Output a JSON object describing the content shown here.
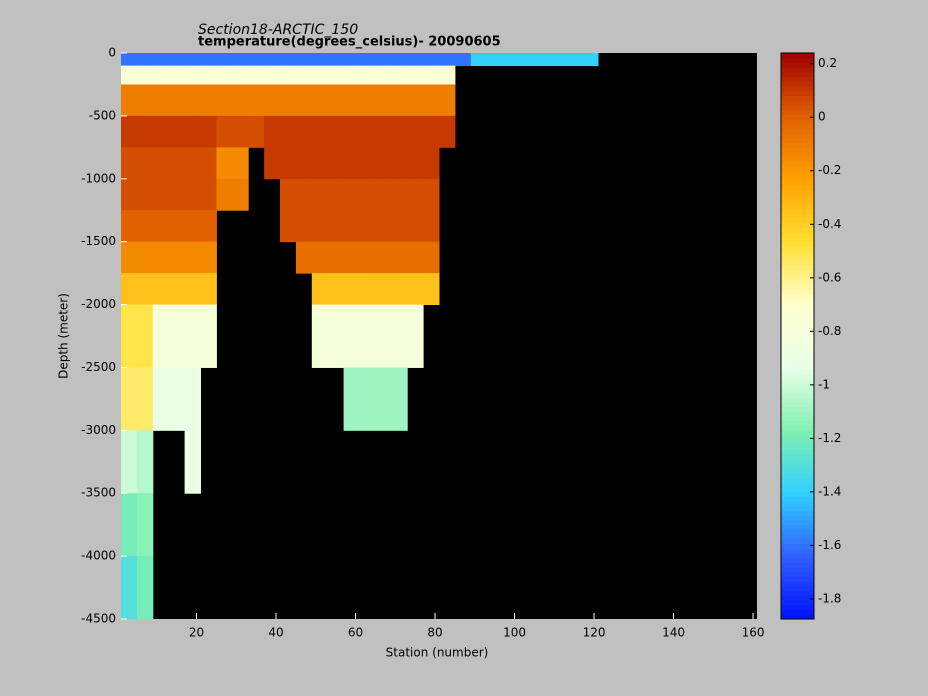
{
  "chart_data": {
    "type": "heatmap",
    "title": "Section18-ARCTIC_150",
    "subtitle": "temperature(degrees_celsius)- 20090605",
    "x_label": "Station (number)",
    "y_label": "Depth (meter)",
    "xlim": [
      1,
      161
    ],
    "ylim": [
      -4500,
      0
    ],
    "xticks": [
      20,
      40,
      60,
      80,
      100,
      120,
      140,
      160
    ],
    "yticks": [
      0,
      -500,
      -1000,
      -1500,
      -2000,
      -2500,
      -3000,
      -3500,
      -4000,
      -4500
    ],
    "clim": [
      -1.875,
      0.24
    ],
    "cticks": [
      0.2,
      0,
      -0.2,
      -0.4,
      -0.6,
      -0.8,
      -1,
      -1.2,
      -1.4,
      -1.6,
      -1.8
    ],
    "colormap": [
      "#0010ff",
      "#3060ff",
      "#30d0ff",
      "#80f0b0",
      "#e8ffe8",
      "#ffffd0",
      "#ffe030",
      "#ffa000",
      "#e06000",
      "#a00000"
    ],
    "background": "#000000",
    "x_edges": [
      1,
      5,
      9,
      13,
      17,
      21,
      25,
      29,
      33,
      37,
      41,
      45,
      49,
      53,
      57,
      61,
      65,
      69,
      73,
      77,
      81,
      85,
      89,
      93,
      97,
      101,
      105,
      109,
      113,
      117,
      121,
      125,
      129,
      133,
      137,
      141,
      145,
      149,
      153,
      157,
      161
    ],
    "y_edges": [
      0,
      -100,
      -250,
      -500,
      -750,
      -1000,
      -1250,
      -1500,
      -1750,
      -2000,
      -2500,
      -3000,
      -3500,
      -4000,
      -4500
    ],
    "z": [
      [
        -1.6,
        -1.6,
        -1.6,
        -1.6,
        -1.6,
        -1.6,
        -1.6,
        -1.6,
        -1.6,
        -1.6,
        -1.6,
        -1.6,
        -1.6,
        -1.6,
        -1.6,
        -1.6,
        -1.6,
        -1.6,
        -1.6,
        -1.6,
        -1.6,
        -1.6,
        -1.4,
        -1.4,
        -1.4,
        -1.4,
        -1.4,
        -1.4,
        -1.4,
        -1.4,
        null,
        null,
        null,
        null,
        null,
        null,
        null,
        null,
        null,
        null
      ],
      [
        -0.75,
        -0.75,
        -0.75,
        -0.75,
        -0.75,
        -0.75,
        -0.75,
        -0.75,
        -0.75,
        -0.75,
        -0.75,
        -0.75,
        -0.75,
        -0.75,
        -0.75,
        -0.75,
        -0.75,
        -0.75,
        -0.75,
        -0.75,
        -0.75,
        null,
        null,
        null,
        null,
        null,
        null,
        null,
        null,
        null,
        null,
        null,
        null,
        null,
        null,
        null,
        null,
        null,
        null,
        null
      ],
      [
        -0.1,
        -0.1,
        -0.1,
        -0.1,
        -0.1,
        -0.1,
        -0.1,
        -0.1,
        -0.1,
        -0.1,
        -0.1,
        -0.1,
        -0.1,
        -0.1,
        -0.1,
        -0.1,
        -0.1,
        -0.1,
        -0.1,
        -0.1,
        -0.1,
        null,
        null,
        null,
        null,
        null,
        null,
        null,
        null,
        null,
        null,
        null,
        null,
        null,
        null,
        null,
        null,
        null,
        null,
        null
      ],
      [
        0.1,
        0.1,
        0.1,
        0.1,
        0.1,
        0.1,
        0.05,
        0.05,
        0.05,
        0.1,
        0.1,
        0.1,
        0.1,
        0.1,
        0.1,
        0.1,
        0.1,
        0.1,
        0.1,
        0.1,
        0.1,
        null,
        null,
        null,
        null,
        null,
        null,
        null,
        null,
        null,
        null,
        null,
        null,
        null,
        null,
        null,
        null,
        null,
        null,
        null
      ],
      [
        0.05,
        0.05,
        0.05,
        0.05,
        0.05,
        0.05,
        -0.15,
        -0.15,
        null,
        0.1,
        0.1,
        0.1,
        0.1,
        0.1,
        0.1,
        0.1,
        0.1,
        0.1,
        0.1,
        0.1,
        null,
        null,
        null,
        null,
        null,
        null,
        null,
        null,
        null,
        null,
        null,
        null,
        null,
        null,
        null,
        null,
        null,
        null,
        null,
        null
      ],
      [
        0.05,
        0.05,
        0.05,
        0.05,
        0.05,
        0.05,
        -0.1,
        -0.1,
        null,
        null,
        0.05,
        0.05,
        0.05,
        0.05,
        0.05,
        0.05,
        0.05,
        0.05,
        0.05,
        0.05,
        null,
        null,
        null,
        null,
        null,
        null,
        null,
        null,
        null,
        null,
        null,
        null,
        null,
        null,
        null,
        null,
        null,
        null,
        null,
        null
      ],
      [
        0,
        0,
        0,
        0,
        0,
        0,
        null,
        null,
        null,
        null,
        0.05,
        0.05,
        0.05,
        0.05,
        0.05,
        0.05,
        0.05,
        0.05,
        0.05,
        0.05,
        null,
        null,
        null,
        null,
        null,
        null,
        null,
        null,
        null,
        null,
        null,
        null,
        null,
        null,
        null,
        null,
        null,
        null,
        null,
        null
      ],
      [
        -0.15,
        -0.15,
        -0.15,
        -0.15,
        -0.15,
        -0.15,
        null,
        null,
        null,
        null,
        null,
        -0.05,
        -0.05,
        -0.05,
        -0.05,
        -0.05,
        -0.05,
        -0.05,
        -0.05,
        -0.05,
        null,
        null,
        null,
        null,
        null,
        null,
        null,
        null,
        null,
        null,
        null,
        null,
        null,
        null,
        null,
        null,
        null,
        null,
        null,
        null
      ],
      [
        -0.35,
        -0.35,
        -0.35,
        -0.35,
        -0.35,
        -0.35,
        null,
        null,
        null,
        null,
        null,
        null,
        -0.35,
        -0.35,
        -0.35,
        -0.35,
        -0.35,
        -0.35,
        -0.35,
        -0.35,
        null,
        null,
        null,
        null,
        null,
        null,
        null,
        null,
        null,
        null,
        null,
        null,
        null,
        null,
        null,
        null,
        null,
        null,
        null,
        null
      ],
      [
        -0.5,
        -0.5,
        -0.8,
        -0.8,
        -0.8,
        -0.8,
        null,
        null,
        null,
        null,
        null,
        null,
        -0.8,
        -0.8,
        -0.8,
        -0.8,
        -0.8,
        -0.8,
        -0.8,
        null,
        null,
        null,
        null,
        null,
        null,
        null,
        null,
        null,
        null,
        null,
        null,
        null,
        null,
        null,
        null,
        null,
        null,
        null,
        null,
        null
      ],
      [
        -0.55,
        -0.55,
        -0.9,
        -0.9,
        -0.9,
        null,
        null,
        null,
        null,
        null,
        null,
        null,
        null,
        null,
        -1.1,
        -1.1,
        -1.1,
        -1.1,
        null,
        null,
        null,
        null,
        null,
        null,
        null,
        null,
        null,
        null,
        null,
        null,
        null,
        null,
        null,
        null,
        null,
        null,
        null,
        null,
        null,
        null
      ],
      [
        -1.0,
        -1.05,
        null,
        null,
        -0.9,
        null,
        null,
        null,
        null,
        null,
        null,
        null,
        null,
        null,
        null,
        null,
        null,
        null,
        null,
        null,
        null,
        null,
        null,
        null,
        null,
        null,
        null,
        null,
        null,
        null,
        null,
        null,
        null,
        null,
        null,
        null,
        null,
        null,
        null,
        null
      ],
      [
        -1.2,
        -1.15,
        null,
        null,
        null,
        null,
        null,
        null,
        null,
        null,
        null,
        null,
        null,
        null,
        null,
        null,
        null,
        null,
        null,
        null,
        null,
        null,
        null,
        null,
        null,
        null,
        null,
        null,
        null,
        null,
        null,
        null,
        null,
        null,
        null,
        null,
        null,
        null,
        null,
        null
      ],
      [
        -1.3,
        -1.2,
        null,
        null,
        null,
        null,
        null,
        null,
        null,
        null,
        null,
        null,
        null,
        null,
        null,
        null,
        null,
        null,
        null,
        null,
        null,
        null,
        null,
        null,
        null,
        null,
        null,
        null,
        null,
        null,
        null,
        null,
        null,
        null,
        null,
        null,
        null,
        null,
        null,
        null
      ]
    ]
  }
}
